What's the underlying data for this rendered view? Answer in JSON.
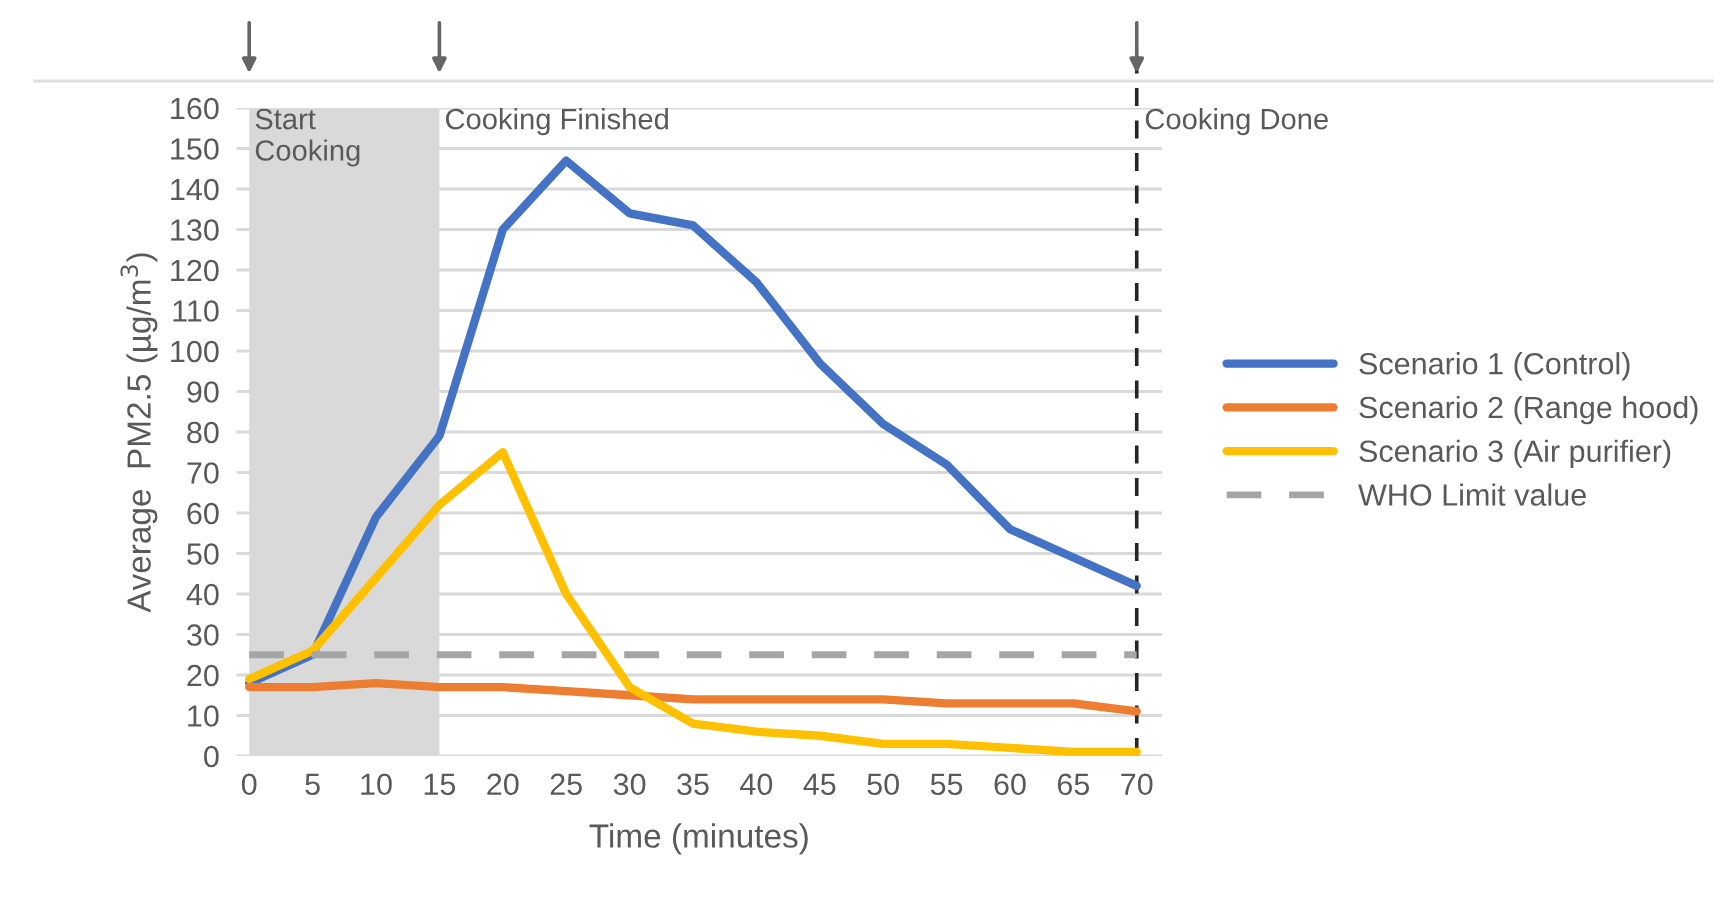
{
  "chart_data": {
    "type": "line",
    "xlabel": "Time (minutes)",
    "ylabel": "Average  PM2.5 (µg/m$^{3}$)",
    "x": [
      0,
      5,
      10,
      15,
      20,
      25,
      30,
      35,
      40,
      45,
      50,
      55,
      60,
      65,
      70
    ],
    "series": [
      {
        "name": "Scenario 1 (Control)",
        "color": "#4472c4",
        "values": [
          18,
          25,
          59,
          79,
          130,
          147,
          134,
          131,
          117,
          97,
          82,
          72,
          56,
          49,
          42
        ]
      },
      {
        "name": "Scenario 2 (Range hood)",
        "color": "#ed7d31",
        "values": [
          17,
          17,
          18,
          17,
          17,
          16,
          15,
          14,
          14,
          14,
          14,
          13,
          13,
          13,
          11
        ]
      },
      {
        "name": "Scenario 3 (Air purifier)",
        "color": "#ffc000",
        "values": [
          19,
          26,
          44,
          62,
          75,
          40,
          17,
          8,
          6,
          5,
          3,
          3,
          2,
          1,
          1
        ]
      },
      {
        "name": "WHO Limit value",
        "color": "#a5a5a5",
        "line_style": "dashed",
        "values": [
          25,
          25,
          25,
          25,
          25,
          25,
          25,
          25,
          25,
          25,
          25,
          25,
          25,
          25,
          25
        ]
      }
    ],
    "bands": [
      {
        "axis": "x",
        "from": 0,
        "to": 15,
        "label": "Start\nCooking",
        "color": "#d9d9d9"
      }
    ],
    "ref_lines": [
      {
        "axis": "x",
        "value": 70,
        "label": "Cooking Done",
        "color": "#262626",
        "line_style": "dashed"
      }
    ],
    "annotations": [
      {
        "text": "Cooking Finished",
        "x": 15
      }
    ],
    "xlim": [
      -1,
      72
    ],
    "xticks": [
      0,
      5,
      10,
      15,
      20,
      25,
      30,
      35,
      40,
      45,
      50,
      55,
      60,
      65,
      70
    ],
    "ylim": [
      0,
      160
    ],
    "yticks": [
      0,
      10,
      20,
      30,
      40,
      50,
      60,
      70,
      80,
      90,
      100,
      110,
      120,
      130,
      140,
      150,
      160
    ],
    "grid": "y",
    "legend": "right",
    "marker": "none",
    "line_style": "solid"
  }
}
